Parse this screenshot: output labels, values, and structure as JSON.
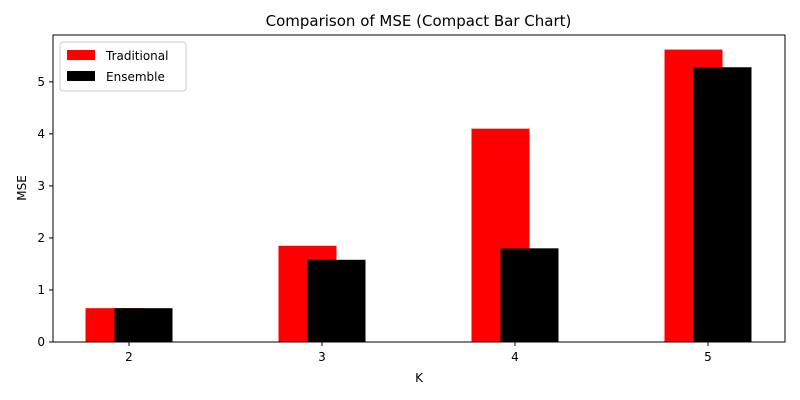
{
  "chart_data": {
    "type": "bar",
    "title": "Comparison of MSE (Compact Bar Chart)",
    "xlabel": "K",
    "ylabel": "MSE",
    "categories": [
      "2",
      "3",
      "4",
      "5"
    ],
    "series": [
      {
        "name": "Traditional",
        "color": "#ff0000",
        "values": [
          0.65,
          1.85,
          4.1,
          5.62
        ]
      },
      {
        "name": "Ensemble",
        "color": "#000000",
        "values": [
          0.65,
          1.58,
          1.8,
          5.28
        ]
      }
    ],
    "ylim": [
      0,
      5.9
    ],
    "yticks": [
      0,
      1,
      2,
      3,
      4,
      5
    ],
    "grid": false,
    "legend": "upper-left"
  }
}
